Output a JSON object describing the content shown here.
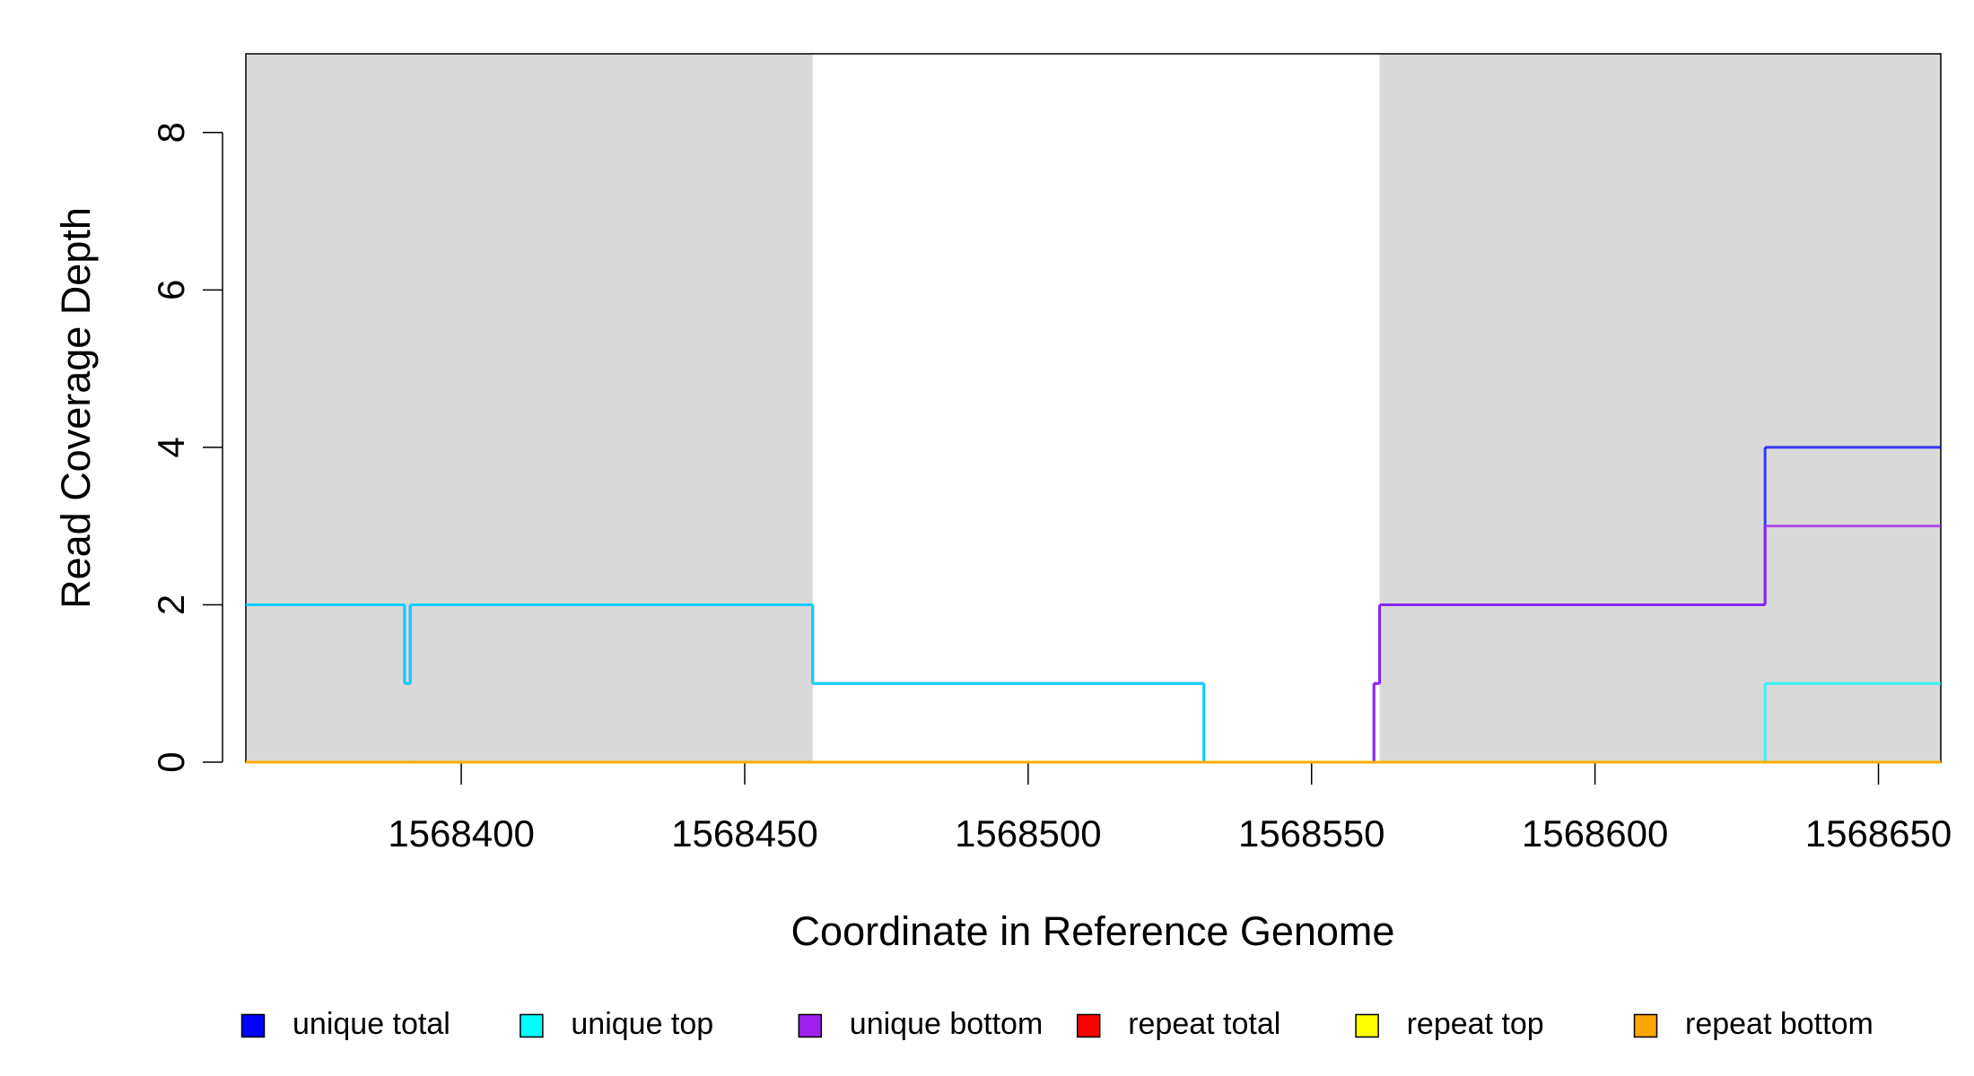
{
  "chart_data": {
    "type": "step",
    "x_label": "Coordinate in Reference Genome",
    "y_label": "Read Coverage Depth",
    "x": [
      1568362,
      1568390,
      1568391,
      1568462,
      1568531,
      1568561,
      1568562,
      1568630
    ],
    "series": [
      {
        "name": "unique total",
        "color": "#0000ff",
        "values": [
          2,
          1,
          2,
          1,
          0,
          1,
          2,
          4
        ]
      },
      {
        "name": "unique top",
        "color": "#00ffff",
        "values": [
          2,
          1,
          2,
          1,
          0,
          0,
          0,
          1
        ]
      },
      {
        "name": "unique bottom",
        "color": "#a020f0",
        "values": [
          0,
          0,
          0,
          0,
          0,
          1,
          2,
          3
        ]
      },
      {
        "name": "repeat total",
        "color": "#ff0000",
        "values": [
          0,
          0,
          0,
          0,
          0,
          0,
          0,
          0
        ]
      },
      {
        "name": "repeat top",
        "color": "#ffff00",
        "values": [
          0,
          0,
          0,
          0,
          0,
          0,
          0,
          0
        ]
      },
      {
        "name": "repeat bottom",
        "color": "#ffa500",
        "values": [
          0,
          0,
          0,
          0,
          0,
          0,
          0,
          0
        ]
      }
    ],
    "shaded_regions": [
      {
        "start": 1568362,
        "end": 1568462
      },
      {
        "start": 1568562,
        "end": 1568661
      }
    ],
    "shade_color": "#d9d9d9",
    "xlim": [
      1568362,
      1568661
    ],
    "xticks": [
      1568400,
      1568450,
      1568500,
      1568550,
      1568600,
      1568650
    ],
    "ylim": [
      0,
      9
    ],
    "yticks": [
      0,
      2,
      4,
      6,
      8
    ],
    "legend": "bottom"
  }
}
